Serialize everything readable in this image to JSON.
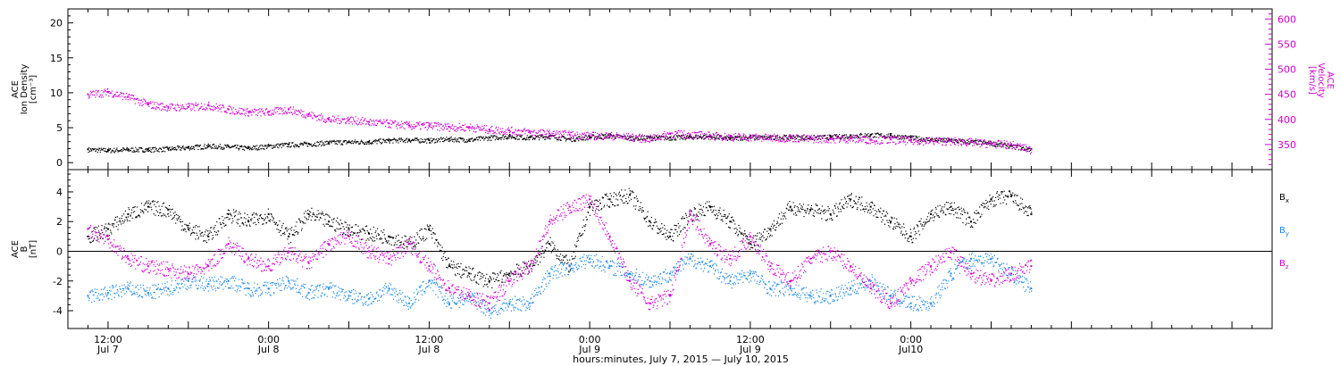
{
  "chart_data": [
    {
      "type": "scatter",
      "panel": "plasma",
      "left_axis": {
        "label_lines": [
          "ACE",
          "Ion Density",
          "[cm⁻³]"
        ],
        "ticks": [
          "0",
          "5",
          "10",
          "15",
          "20"
        ],
        "range": [
          -1,
          22
        ]
      },
      "right_axis": {
        "label_lines": [
          "ACE",
          "Velocity",
          "[km/s]"
        ],
        "ticks": [
          "350",
          "400",
          "450",
          "500",
          "550",
          "600"
        ],
        "range": [
          300,
          620
        ],
        "color": "#d000d0"
      },
      "series": [
        {
          "color": "#000000",
          "axis": "left",
          "x": [
            9,
            12,
            15,
            18,
            21,
            24,
            27,
            30,
            33,
            36,
            39,
            42,
            45,
            48,
            51,
            54,
            57,
            60,
            63,
            66,
            69,
            72,
            75,
            78,
            81,
            84,
            87,
            90,
            93,
            96,
            99,
            102,
            105,
            108,
            111,
            114,
            117,
            120,
            123,
            126,
            129,
            132,
            135,
            138,
            141,
            144,
            147,
            150
          ],
          "y": [
            1.9,
            1.8,
            1.9,
            1.9,
            2.0,
            2.2,
            2.4,
            2.3,
            2.1,
            2.4,
            2.6,
            2.7,
            2.9,
            3.0,
            3.0,
            3.2,
            3.3,
            3.2,
            3.4,
            3.3,
            3.6,
            3.8,
            3.6,
            3.8,
            3.4,
            3.7,
            3.9,
            3.6,
            3.6,
            3.6,
            3.7,
            3.8,
            3.5,
            3.7,
            3.6,
            3.7,
            3.6,
            3.7,
            3.9,
            4.0,
            3.9,
            3.6,
            3.3,
            3.2,
            3.0,
            2.8,
            2.4,
            1.9
          ]
        },
        {
          "color": "#d000d0",
          "axis": "right",
          "x": [
            9,
            12,
            15,
            18,
            21,
            24,
            27,
            30,
            33,
            36,
            39,
            42,
            45,
            48,
            51,
            54,
            57,
            60,
            63,
            66,
            69,
            72,
            75,
            78,
            81,
            84,
            87,
            90,
            93,
            96,
            99,
            102,
            105,
            108,
            111,
            114,
            117,
            120,
            123,
            126,
            129,
            132,
            135,
            138,
            141,
            144,
            147,
            150
          ],
          "y": [
            450,
            455,
            445,
            430,
            425,
            425,
            428,
            420,
            415,
            415,
            420,
            410,
            400,
            400,
            395,
            392,
            388,
            388,
            385,
            385,
            380,
            378,
            375,
            372,
            370,
            368,
            368,
            365,
            362,
            372,
            370,
            368,
            366,
            365,
            364,
            364,
            362,
            362,
            362,
            360,
            360,
            358,
            358,
            357,
            355,
            352,
            350,
            340
          ]
        }
      ]
    },
    {
      "type": "scatter",
      "panel": "magnetic-field",
      "left_axis": {
        "label_lines": [
          "ACE",
          "B",
          "[nT]"
        ],
        "ticks": [
          "-4",
          "-2",
          "0",
          "2",
          "4"
        ],
        "range": [
          -5.2,
          5.5
        ]
      },
      "legend": {
        "position": "right",
        "entries": [
          {
            "label": "B",
            "sub": "x",
            "color": "#000000"
          },
          {
            "label": "B",
            "sub": "y",
            "color": "#1e88e5"
          },
          {
            "label": "B",
            "sub": "z",
            "color": "#d000d0"
          }
        ]
      },
      "series": [
        {
          "name": "Bx",
          "color": "#000000",
          "x": [
            9,
            12,
            15,
            18,
            21,
            24,
            27,
            30,
            33,
            36,
            39,
            42,
            45,
            48,
            51,
            54,
            57,
            60,
            63,
            66,
            69,
            72,
            75,
            78,
            81,
            84,
            87,
            90,
            93,
            96,
            99,
            102,
            105,
            108,
            111,
            114,
            117,
            120,
            123,
            126,
            129,
            132,
            135,
            138,
            141,
            144,
            147,
            150
          ],
          "y": [
            1.0,
            1.5,
            2.5,
            3.0,
            2.8,
            1.5,
            1.0,
            2.5,
            2.0,
            2.5,
            1.0,
            2.5,
            2.0,
            1.5,
            1.2,
            1.0,
            0.5,
            1.5,
            -1.0,
            -1.5,
            -2.0,
            -1.5,
            -1.0,
            0.5,
            -1.0,
            3.0,
            3.5,
            3.8,
            2.0,
            1.0,
            2.5,
            3.0,
            2.0,
            0.5,
            1.5,
            3.0,
            2.8,
            2.5,
            3.5,
            3.0,
            2.0,
            1.0,
            2.5,
            3.0,
            2.0,
            3.5,
            3.7,
            2.5
          ]
        },
        {
          "name": "By",
          "color": "#1e88e5",
          "x": [
            9,
            12,
            15,
            18,
            21,
            24,
            27,
            30,
            33,
            36,
            39,
            42,
            45,
            48,
            51,
            54,
            57,
            60,
            63,
            66,
            69,
            72,
            75,
            78,
            81,
            84,
            87,
            90,
            93,
            96,
            99,
            102,
            105,
            108,
            111,
            114,
            117,
            120,
            123,
            126,
            129,
            132,
            135,
            138,
            141,
            144,
            147,
            150
          ],
          "y": [
            -3.0,
            -2.8,
            -2.5,
            -2.8,
            -2.5,
            -2.0,
            -2.2,
            -2.0,
            -2.5,
            -2.5,
            -2.0,
            -2.8,
            -2.5,
            -3.0,
            -3.2,
            -2.5,
            -3.5,
            -2.0,
            -3.5,
            -3.0,
            -4.0,
            -3.5,
            -3.5,
            -1.5,
            -1.0,
            -0.5,
            -1.0,
            -1.5,
            -2.0,
            -1.5,
            -0.5,
            -1.0,
            -2.0,
            -1.5,
            -2.5,
            -2.5,
            -3.0,
            -3.0,
            -2.5,
            -2.0,
            -3.0,
            -3.5,
            -3.5,
            -1.5,
            -0.5,
            -0.5,
            -1.5,
            -2.5
          ]
        },
        {
          "name": "Bz",
          "color": "#d000d0",
          "x": [
            9,
            12,
            15,
            18,
            21,
            24,
            27,
            30,
            33,
            36,
            39,
            42,
            45,
            48,
            51,
            54,
            57,
            60,
            63,
            66,
            69,
            72,
            75,
            78,
            81,
            84,
            87,
            90,
            93,
            96,
            99,
            102,
            105,
            108,
            111,
            114,
            117,
            120,
            123,
            126,
            129,
            132,
            135,
            138,
            141,
            144,
            147,
            150
          ],
          "y": [
            1.5,
            0.8,
            -0.5,
            -1.0,
            -1.2,
            -1.5,
            -1.0,
            0.5,
            -0.5,
            -1.0,
            0.0,
            -0.8,
            0.5,
            1.0,
            0.0,
            -0.5,
            0.5,
            -1.0,
            -2.5,
            -3.0,
            -3.5,
            -2.0,
            -1.0,
            2.0,
            3.0,
            3.5,
            1.0,
            -2.0,
            -3.5,
            -3.0,
            2.5,
            0.5,
            -0.5,
            1.0,
            -1.0,
            -2.0,
            -0.5,
            0.0,
            -1.0,
            -2.5,
            -3.5,
            -2.0,
            -1.0,
            0.0,
            -1.5,
            -2.0,
            -1.5,
            -1.0
          ]
        }
      ]
    }
  ],
  "time_axis": {
    "range_hours": [
      6,
      186
    ],
    "ticks": [
      {
        "hour": 12,
        "time": "12:00",
        "date": "Jul 7"
      },
      {
        "hour": 24,
        "time": "",
        "date": ""
      },
      {
        "hour": 36,
        "time": "0:00",
        "date": "Jul 8"
      },
      {
        "hour": 60,
        "time": "12:00",
        "date": "Jul 8"
      },
      {
        "hour": 84,
        "time": "0:00",
        "date": "Jul 9"
      },
      {
        "hour": 108,
        "time": "12:00",
        "date": "Jul 9"
      },
      {
        "hour": 132,
        "time": "0:00",
        "date": "Jul10"
      }
    ],
    "title": "hours:minutes,  July  7, 2015 — July 10, 2015"
  }
}
